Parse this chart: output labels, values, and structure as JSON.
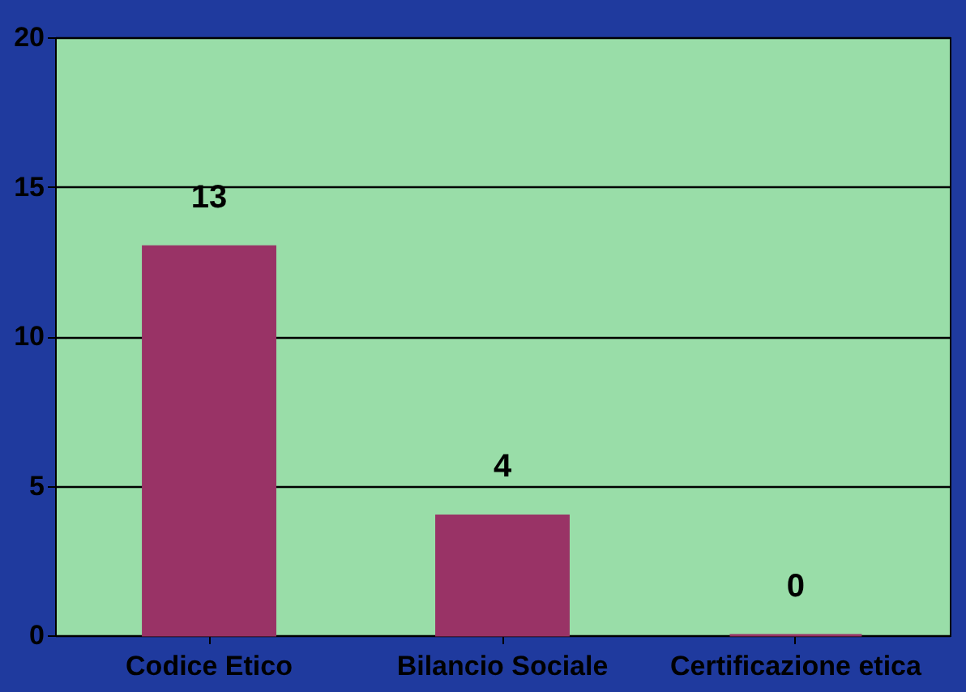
{
  "chart_data": {
    "type": "bar",
    "categories": [
      "Codice Etico",
      "Bilancio Sociale",
      "Certificazione etica"
    ],
    "values": [
      13,
      4,
      0
    ],
    "color": "#993366",
    "ylim": [
      0,
      20
    ],
    "yticks": [
      0,
      5,
      10,
      15,
      20
    ],
    "grid": "y",
    "data_labels": true
  }
}
